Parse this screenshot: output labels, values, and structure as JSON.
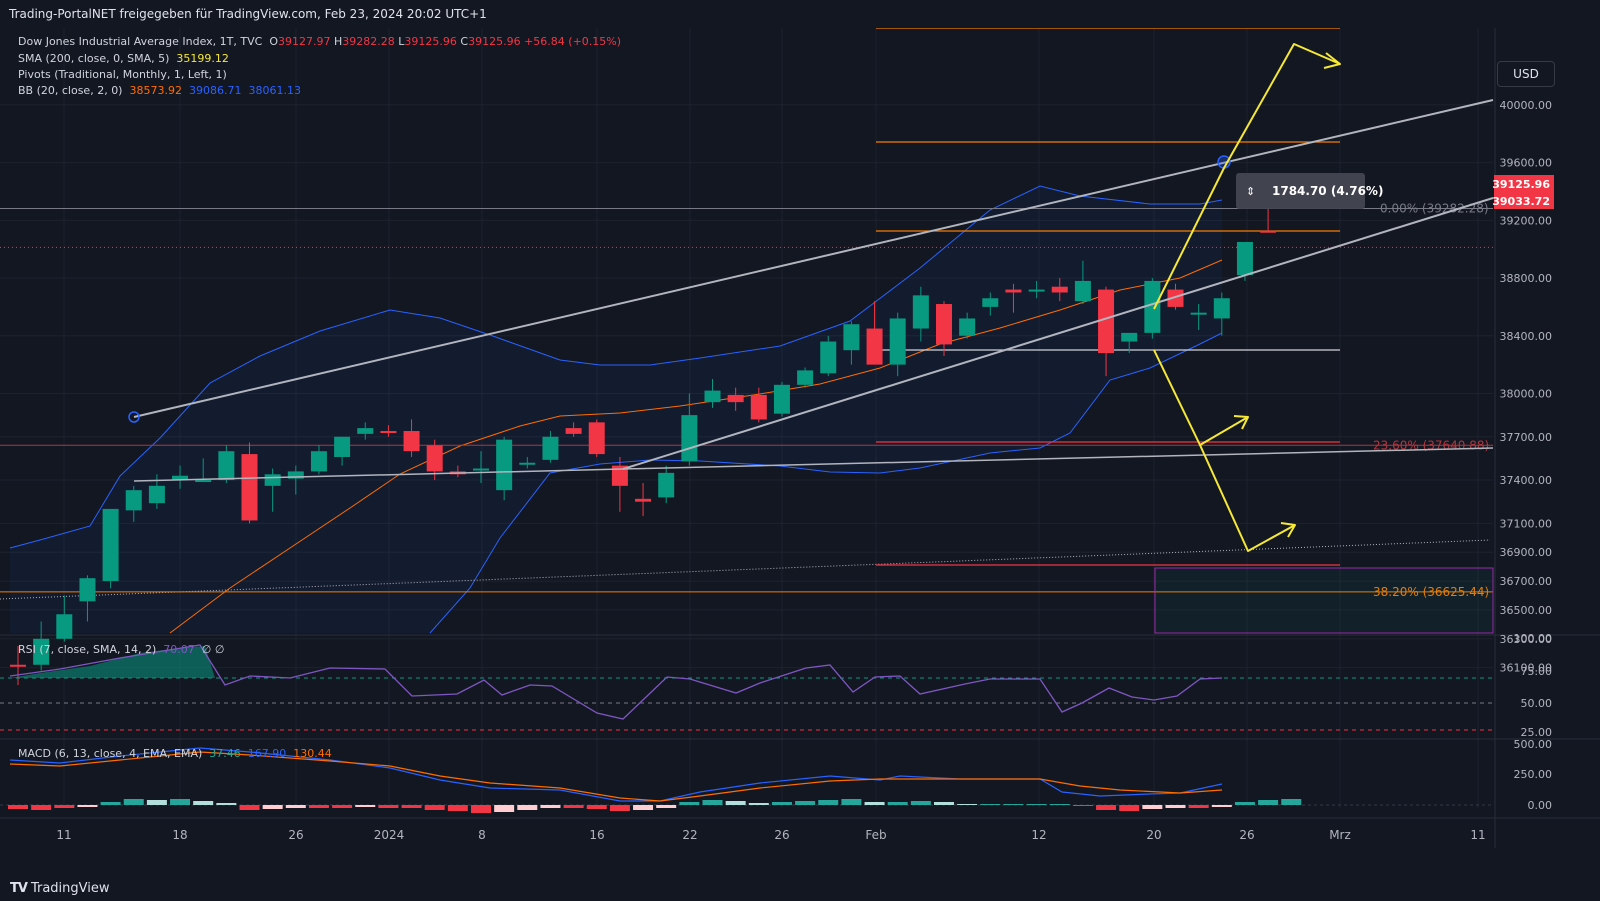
{
  "header": {
    "title": "Trading-PortalNET freigegeben für TradingView.com, Feb 23, 2024 20:02 UTC+1"
  },
  "footer": {
    "brand": "TradingView"
  },
  "currency": "USD",
  "legend": {
    "symbol": "Dow Jones Industrial Average Index, 1T, TVC",
    "o_label": "O",
    "o": "39127.97",
    "h_label": "H",
    "h": "39282.28",
    "l_label": "L",
    "l": "39125.96",
    "c_label": "C",
    "c": "39125.96",
    "chg": "+56.84 (+0.15%)",
    "sma": "SMA (200, close, 0, SMA, 5)",
    "sma_val": "35199.12",
    "pivots": "Pivots (Traditional, Monthly, 1, Left, 1)",
    "bb": "BB (20, close, 2, 0)",
    "bb_basis": "38573.92",
    "bb_upper": "39086.71",
    "bb_lower": "38061.13",
    "rsi": "RSI (7, close, SMA, 14, 2)",
    "rsi_val": "70.07",
    "rsi_extra": "∅ ∅",
    "macd": "MACD (6, 13, close, 4, EMA, EMA)",
    "macd_hist": "37.46",
    "macd_line": "167.90",
    "macd_signal": "130.44"
  },
  "colors": {
    "up": "#089981",
    "down": "#f23645",
    "bb": "#2962ff",
    "sma": "#ff6d00",
    "rsi": "#7e57c2",
    "fib": "#f57c00",
    "yellow": "#f5e836",
    "macd": "#2962ff",
    "signal": "#ff6d00"
  },
  "annotations": {
    "measure": "1784.70 (4.76%)",
    "fib0": "0.00% (39282.28)",
    "fib236": "23.60% (37640.88)",
    "fib382": "38.20% (36625.44)"
  },
  "price_labels": {
    "current": "39125.96",
    "bb_label": "39033.72"
  },
  "chart_data": {
    "type": "candlestick",
    "title": "Dow Jones Industrial Average Index, 1T, TVC",
    "x_ticks": [
      "11",
      "18",
      "26",
      "2024",
      "8",
      "16",
      "22",
      "26",
      "Feb",
      "12",
      "20",
      "26",
      "Mrz",
      "11"
    ],
    "y_ticks": [
      40000,
      39600,
      39200,
      38800,
      38400,
      38000,
      37700,
      37400,
      37100,
      36900,
      36700,
      36500,
      36300,
      36100
    ],
    "y_tick_labels": [
      "40000.00",
      "39600.00",
      "39200.00",
      "38800.00",
      "38400.00",
      "38000.00",
      "37700.00",
      "37400.00",
      "37100.00",
      "36900.00",
      "36700.00",
      "36500.00",
      "36300.00",
      "36100.00"
    ],
    "ylim": [
      36050,
      40300
    ],
    "candles": [
      {
        "d": "Dec 8",
        "o": 36120,
        "h": 36250,
        "l": 35980,
        "c": 36110
      },
      {
        "d": "Dec 11",
        "o": 36120,
        "h": 36420,
        "l": 36080,
        "c": 36300
      },
      {
        "d": "Dec 12",
        "o": 36300,
        "h": 36600,
        "l": 36280,
        "c": 36470
      },
      {
        "d": "Dec 13",
        "o": 36560,
        "h": 36740,
        "l": 36420,
        "c": 36720
      },
      {
        "d": "Dec 14",
        "o": 36700,
        "h": 37200,
        "l": 36650,
        "c": 37200
      },
      {
        "d": "Dec 15",
        "o": 37190,
        "h": 37360,
        "l": 37110,
        "c": 37330
      },
      {
        "d": "Dec 18",
        "o": 37240,
        "h": 37440,
        "l": 37200,
        "c": 37360
      },
      {
        "d": "Dec 19",
        "o": 37400,
        "h": 37500,
        "l": 37340,
        "c": 37430
      },
      {
        "d": "Dec 20",
        "o": 37400,
        "h": 37550,
        "l": 37400,
        "c": 37400
      },
      {
        "d": "Dec 21",
        "o": 37400,
        "h": 37640,
        "l": 37380,
        "c": 37600
      },
      {
        "d": "Dec 22",
        "o": 37580,
        "h": 37660,
        "l": 37100,
        "c": 37120
      },
      {
        "d": "Dec 26",
        "o": 37360,
        "h": 37480,
        "l": 37180,
        "c": 37440
      },
      {
        "d": "Dec 27",
        "o": 37410,
        "h": 37500,
        "l": 37300,
        "c": 37460
      },
      {
        "d": "Dec 28",
        "o": 37460,
        "h": 37640,
        "l": 37440,
        "c": 37600
      },
      {
        "d": "Dec 29",
        "o": 37560,
        "h": 37700,
        "l": 37500,
        "c": 37700
      },
      {
        "d": "Jan 2",
        "o": 37720,
        "h": 37800,
        "l": 37680,
        "c": 37760
      },
      {
        "d": "Jan 3",
        "o": 37740,
        "h": 37780,
        "l": 37700,
        "c": 37730
      },
      {
        "d": "Jan 4",
        "o": 37740,
        "h": 37820,
        "l": 37560,
        "c": 37600
      },
      {
        "d": "Jan 5",
        "o": 37640,
        "h": 37680,
        "l": 37400,
        "c": 37460
      },
      {
        "d": "Jan 8",
        "o": 37460,
        "h": 37500,
        "l": 37420,
        "c": 37440
      },
      {
        "d": "Jan 9",
        "o": 37470,
        "h": 37600,
        "l": 37380,
        "c": 37480
      },
      {
        "d": "Jan 10",
        "o": 37330,
        "h": 37700,
        "l": 37260,
        "c": 37680
      },
      {
        "d": "Jan 11",
        "o": 37520,
        "h": 37560,
        "l": 37480,
        "c": 37520
      },
      {
        "d": "Jan 12",
        "o": 37540,
        "h": 37740,
        "l": 37520,
        "c": 37700
      },
      {
        "d": "Jan 16",
        "o": 37760,
        "h": 37800,
        "l": 37700,
        "c": 37720
      },
      {
        "d": "Jan 17",
        "o": 37800,
        "h": 37820,
        "l": 37560,
        "c": 37580
      },
      {
        "d": "Jan 18",
        "o": 37500,
        "h": 37560,
        "l": 37180,
        "c": 37360
      },
      {
        "d": "Jan 19",
        "o": 37270,
        "h": 37380,
        "l": 37150,
        "c": 37250
      },
      {
        "d": "Jan 22",
        "o": 37280,
        "h": 37500,
        "l": 37240,
        "c": 37450
      },
      {
        "d": "Jan 23",
        "o": 37530,
        "h": 38000,
        "l": 37500,
        "c": 37850
      },
      {
        "d": "Jan 24",
        "o": 37940,
        "h": 38100,
        "l": 37900,
        "c": 38020
      },
      {
        "d": "Jan 25",
        "o": 37990,
        "h": 38040,
        "l": 37880,
        "c": 37940
      },
      {
        "d": "Jan 26",
        "o": 37990,
        "h": 38040,
        "l": 37800,
        "c": 37820
      },
      {
        "d": "Jan 29",
        "o": 37860,
        "h": 38080,
        "l": 37840,
        "c": 38060
      },
      {
        "d": "Jan 30",
        "o": 38060,
        "h": 38180,
        "l": 38040,
        "c": 38160
      },
      {
        "d": "Jan 31",
        "o": 38140,
        "h": 38400,
        "l": 38120,
        "c": 38360
      },
      {
        "d": "Feb 1",
        "o": 38300,
        "h": 38500,
        "l": 38200,
        "c": 38480
      },
      {
        "d": "Feb 2",
        "o": 38450,
        "h": 38640,
        "l": 38200,
        "c": 38200
      },
      {
        "d": "Feb 5",
        "o": 38200,
        "h": 38560,
        "l": 38120,
        "c": 38520
      },
      {
        "d": "Feb 6",
        "o": 38450,
        "h": 38740,
        "l": 38360,
        "c": 38680
      },
      {
        "d": "Feb 7",
        "o": 38620,
        "h": 38640,
        "l": 38260,
        "c": 38340
      },
      {
        "d": "Feb 8",
        "o": 38400,
        "h": 38560,
        "l": 38380,
        "c": 38520
      },
      {
        "d": "Feb 9",
        "o": 38600,
        "h": 38700,
        "l": 38540,
        "c": 38660
      },
      {
        "d": "Feb 12",
        "o": 38720,
        "h": 38760,
        "l": 38560,
        "c": 38700
      },
      {
        "d": "Feb 13",
        "o": 38720,
        "h": 38780,
        "l": 38660,
        "c": 38720
      },
      {
        "d": "Feb 14",
        "o": 38740,
        "h": 38800,
        "l": 38640,
        "c": 38700
      },
      {
        "d": "Feb 15",
        "o": 38640,
        "h": 38920,
        "l": 38620,
        "c": 38780
      },
      {
        "d": "Feb 16",
        "o": 38720,
        "h": 38740,
        "l": 38120,
        "c": 38280
      },
      {
        "d": "Feb 20",
        "o": 38360,
        "h": 38420,
        "l": 38280,
        "c": 38420
      },
      {
        "d": "Feb 21",
        "o": 38420,
        "h": 38800,
        "l": 38380,
        "c": 38780
      },
      {
        "d": "Feb 22",
        "o": 38720,
        "h": 38760,
        "l": 38580,
        "c": 38600
      },
      {
        "d": "Feb 23",
        "o": 38560,
        "h": 38620,
        "l": 38440,
        "c": 38560
      },
      {
        "d": "Feb 26",
        "o": 38520,
        "h": 38700,
        "l": 38400,
        "c": 38660
      },
      {
        "d": "Feb 27",
        "o": 38820,
        "h": 39050,
        "l": 38780,
        "c": 39050
      },
      {
        "d": "Feb 28",
        "o": 39127.97,
        "h": 39282.28,
        "l": 39125.96,
        "c": 39125.96
      }
    ],
    "rsi": {
      "y_ticks": [
        "100.00",
        "75.00",
        "50.00",
        "25.00"
      ]
    },
    "macd": {
      "y_ticks": [
        "500.00",
        "250.00",
        "0.00"
      ]
    }
  }
}
